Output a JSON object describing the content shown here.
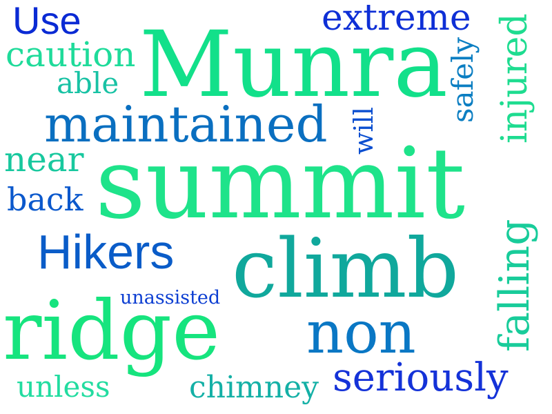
{
  "words": [
    {
      "id": "summit",
      "text": "summit",
      "color": "#1ee38a"
    },
    {
      "id": "munra",
      "text": "Munra",
      "color": "#12e08a"
    },
    {
      "id": "climb",
      "text": "climb",
      "color": "#10a89c"
    },
    {
      "id": "ridge",
      "text": "ridge",
      "color": "#16e47e"
    },
    {
      "id": "maintained",
      "text": "maintained",
      "color": "#0a6fc0"
    },
    {
      "id": "non",
      "text": "non",
      "color": "#0a77c4"
    },
    {
      "id": "hikers",
      "text": "Hikers",
      "color": "#0a5cc8"
    },
    {
      "id": "seriously",
      "text": "seriously",
      "color": "#1432d8"
    },
    {
      "id": "extreme",
      "text": "extreme",
      "color": "#0e2fd6"
    },
    {
      "id": "use",
      "text": "Use",
      "color": "#0a2ad4"
    },
    {
      "id": "caution",
      "text": "caution",
      "color": "#1fdb9a"
    },
    {
      "id": "able",
      "text": "able",
      "color": "#18c2a4"
    },
    {
      "id": "near",
      "text": "near",
      "color": "#18c89e"
    },
    {
      "id": "back",
      "text": "back",
      "color": "#0b58cc"
    },
    {
      "id": "unassisted",
      "text": "unassisted",
      "color": "#0c3ed2"
    },
    {
      "id": "unless",
      "text": "unless",
      "color": "#22dca0"
    },
    {
      "id": "chimney",
      "text": "chimney",
      "color": "#14b0a6"
    },
    {
      "id": "will",
      "text": "will",
      "color": "#0a4ed0"
    },
    {
      "id": "safely",
      "text": "safely",
      "color": "#0b7ec2"
    },
    {
      "id": "injured",
      "text": "injured",
      "color": "#1edc90"
    },
    {
      "id": "falling",
      "text": "falling",
      "color": "#18cc9a"
    }
  ]
}
